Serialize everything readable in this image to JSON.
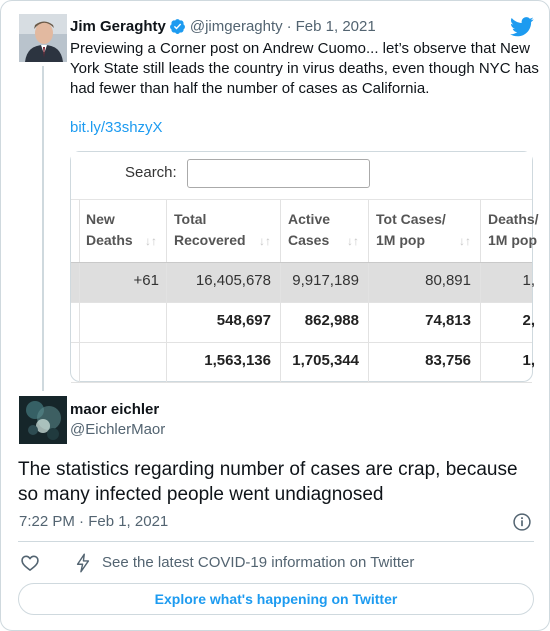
{
  "parent_tweet": {
    "author_name": "Jim Geraghty",
    "handle": "@jimgeraghty",
    "separator": "·",
    "date": "Feb 1, 2021",
    "text": "Previewing a Corner post on Andrew Cuomo... let’s observe that New York State still leads the country in virus deaths, even though NYC has had fewer than half the number of cases as California.",
    "link": "bit.ly/33shzyX",
    "icons": {
      "verified": "verified-badge-icon",
      "brand": "twitter-bird-icon"
    },
    "colors": {
      "link": "#1d9bf0",
      "verified": "#1d9bf0"
    }
  },
  "media_table": {
    "search_label": "Search:",
    "sort_glyph": "↓↑",
    "headers": [
      [
        "New",
        "Deaths"
      ],
      [
        "Total",
        "Recovered"
      ],
      [
        "Active",
        "Cases"
      ],
      [
        "Tot Cases/",
        "1M pop"
      ],
      [
        "Deaths/",
        "1M pop"
      ]
    ],
    "rows": [
      [
        "+61",
        "16,405,678",
        "9,917,189",
        "80,891",
        "1,"
      ],
      [
        "",
        "548,697",
        "862,988",
        "74,813",
        "2,"
      ],
      [
        "",
        "1,563,136",
        "1,705,344",
        "83,756",
        "1,"
      ]
    ]
  },
  "reply_tweet": {
    "author_name": "maor eichler",
    "handle": "@EichlerMaor",
    "text": "The statistics regarding number of cases are crap, because so many infected people went undiagnosed",
    "time": "7:22 PM · Feb 1, 2021"
  },
  "footer": {
    "covid_info": "See the latest COVID-19 information on Twitter",
    "explore_button": "Explore what's happening on Twitter",
    "icons": {
      "like": "heart-icon",
      "covid": "lightning-bolt-icon",
      "info": "info-icon"
    }
  }
}
